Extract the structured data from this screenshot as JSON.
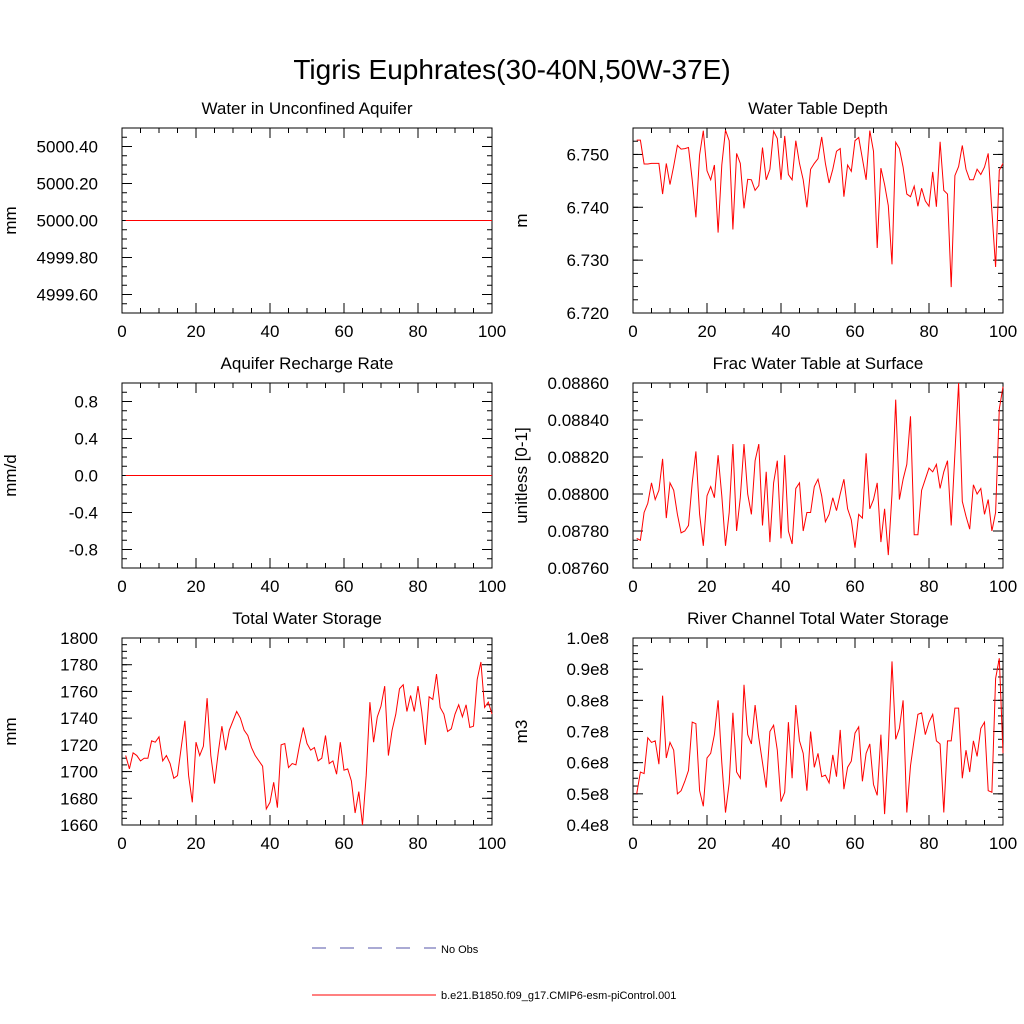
{
  "page_title": "Tigris Euphrates(30-40N,50W-37E)",
  "colors": {
    "series": "#ff0000",
    "no_obs": "#5555aa",
    "axis": "#000000"
  },
  "legend": {
    "items": [
      {
        "label": "No Obs",
        "style": "dashed",
        "color": "#5555aa"
      },
      {
        "label": "b.e21.B1850.f09_g17.CMIP6-esm-piControl.001",
        "style": "solid",
        "color": "#ff0000"
      }
    ]
  },
  "chart_data": [
    {
      "type": "line",
      "title": "Water in Unconfined Aquifer",
      "ylabel": "mm",
      "xlim": [
        0,
        100
      ],
      "ylim": [
        4999.5,
        5000.5
      ],
      "xticks": [
        0,
        20,
        40,
        60,
        80,
        100
      ],
      "xtick_labels": [
        "0",
        "20",
        "40",
        "60",
        "80",
        "100"
      ],
      "yticks": [
        4999.6,
        4999.8,
        5000.0,
        5000.2,
        5000.4
      ],
      "ytick_labels": [
        "4999.60",
        "4999.80",
        "5000.00",
        "5000.20",
        "5000.40"
      ],
      "series": [
        {
          "x": [
            1,
            100
          ],
          "values": [
            5000.0,
            5000.0
          ]
        }
      ]
    },
    {
      "type": "line",
      "title": "Water Table Depth",
      "ylabel": "m",
      "xlim": [
        0,
        100
      ],
      "ylim": [
        6.72,
        6.755
      ],
      "xticks": [
        0,
        20,
        40,
        60,
        80,
        100
      ],
      "xtick_labels": [
        "0",
        "20",
        "40",
        "60",
        "80",
        "100"
      ],
      "yticks": [
        6.72,
        6.73,
        6.74,
        6.75
      ],
      "ytick_labels": [
        "6.720",
        "6.730",
        "6.740",
        "6.750"
      ],
      "series": [
        {
          "x_start": 1,
          "values": [
            6.7527,
            6.7527,
            6.7482,
            6.7482,
            6.7483,
            6.7483,
            6.7483,
            6.7425,
            6.7483,
            6.7443,
            6.7478,
            6.7517,
            6.751,
            6.7511,
            6.7513,
            6.7452,
            6.7381,
            6.7499,
            6.7545,
            6.7469,
            6.7452,
            6.748,
            6.7352,
            6.748,
            6.7546,
            6.7526,
            6.7358,
            6.7502,
            6.7483,
            6.7398,
            6.7453,
            6.7452,
            6.7432,
            6.7441,
            6.7513,
            6.7452,
            6.7472,
            6.7544,
            6.753,
            6.7452,
            6.7535,
            6.7462,
            6.7452,
            6.7526,
            6.7483,
            6.7452,
            6.74,
            6.7472,
            6.7483,
            6.7492,
            6.7533,
            6.7483,
            6.7446,
            6.7472,
            6.7506,
            6.7511,
            6.742,
            6.748,
            6.7468,
            6.7526,
            6.7532,
            6.7492,
            6.7452,
            6.7545,
            6.7506,
            6.7323,
            6.7474,
            6.7443,
            6.7403,
            6.7292,
            6.7523,
            6.7511,
            6.7476,
            6.7425,
            6.742,
            6.744,
            6.7402,
            6.7436,
            6.7412,
            6.7402,
            6.7467,
            6.7401,
            6.7524,
            6.7432,
            6.7425,
            6.7249,
            6.746,
            6.7477,
            6.7517,
            6.7472,
            6.7452,
            6.7452,
            6.7472,
            6.7462,
            6.7476,
            6.7502,
            6.7392,
            6.7287,
            6.747,
            6.7483,
            6.7474,
            6.7268
          ]
        }
      ]
    },
    {
      "type": "line",
      "title": "Aquifer Recharge Rate",
      "ylabel": "mm/d",
      "xlim": [
        0,
        100
      ],
      "ylim": [
        -1,
        1
      ],
      "xticks": [
        0,
        20,
        40,
        60,
        80,
        100
      ],
      "xtick_labels": [
        "0",
        "20",
        "40",
        "60",
        "80",
        "100"
      ],
      "yticks": [
        -0.8,
        -0.4,
        0.0,
        0.4,
        0.8
      ],
      "ytick_labels": [
        "-0.8",
        "-0.4",
        "0.0",
        "0.4",
        "0.8"
      ],
      "series": [
        {
          "x": [
            1,
            100
          ],
          "values": [
            0.0,
            0.0
          ]
        }
      ]
    },
    {
      "type": "line",
      "title": "Frac Water Table at Surface",
      "ylabel": "unitless [0-1]",
      "xlim": [
        0,
        100
      ],
      "ylim": [
        0.0876,
        0.0886
      ],
      "xticks": [
        0,
        20,
        40,
        60,
        80,
        100
      ],
      "xtick_labels": [
        "0",
        "20",
        "40",
        "60",
        "80",
        "100"
      ],
      "yticks": [
        0.0876,
        0.0878,
        0.088,
        0.0882,
        0.0884,
        0.0886
      ],
      "ytick_labels": [
        "0.08760",
        "0.08780",
        "0.08800",
        "0.08820",
        "0.08840",
        "0.08860"
      ],
      "series": [
        {
          "x_start": 1,
          "values": [
            0.08776,
            0.08775,
            0.0879,
            0.08795,
            0.08806,
            0.08797,
            0.08802,
            0.08819,
            0.08787,
            0.08806,
            0.08802,
            0.08789,
            0.08779,
            0.0878,
            0.08783,
            0.08806,
            0.08823,
            0.08789,
            0.08772,
            0.08799,
            0.08804,
            0.08798,
            0.08821,
            0.08799,
            0.08772,
            0.0879,
            0.08827,
            0.0878,
            0.08798,
            0.08827,
            0.088,
            0.08789,
            0.08818,
            0.08827,
            0.08783,
            0.08812,
            0.08774,
            0.08806,
            0.08818,
            0.08776,
            0.08821,
            0.0878,
            0.08773,
            0.08803,
            0.08806,
            0.0878,
            0.0879,
            0.0879,
            0.08804,
            0.08808,
            0.08799,
            0.08785,
            0.08789,
            0.08798,
            0.08791,
            0.088,
            0.08808,
            0.08792,
            0.08786,
            0.08771,
            0.08789,
            0.08787,
            0.08822,
            0.08792,
            0.08797,
            0.08806,
            0.08774,
            0.08792,
            0.08767,
            0.088,
            0.08851,
            0.08797,
            0.08808,
            0.08816,
            0.08842,
            0.08778,
            0.08778,
            0.08802,
            0.08808,
            0.08814,
            0.08812,
            0.08816,
            0.08803,
            0.08812,
            0.08818,
            0.08783,
            0.08822,
            0.0886,
            0.08796,
            0.08788,
            0.08781,
            0.08805,
            0.088,
            0.08803,
            0.08789,
            0.08797,
            0.0878,
            0.0879,
            0.08846,
            0.08858,
            0.08794,
            0.08808
          ]
        }
      ]
    },
    {
      "type": "line",
      "title": "Total Water Storage",
      "ylabel": "mm",
      "xlim": [
        0,
        100
      ],
      "ylim": [
        1660,
        1800
      ],
      "xticks": [
        0,
        20,
        40,
        60,
        80,
        100
      ],
      "xtick_labels": [
        "0",
        "20",
        "40",
        "60",
        "80",
        "100"
      ],
      "yticks": [
        1660,
        1680,
        1700,
        1720,
        1740,
        1760,
        1780,
        1800
      ],
      "ytick_labels": [
        "1660",
        "1680",
        "1700",
        "1720",
        "1740",
        "1760",
        "1780",
        "1800"
      ],
      "series": [
        {
          "x_start": 1,
          "values": [
            1712,
            1702,
            1714,
            1712,
            1708,
            1710,
            1710,
            1723,
            1722,
            1726,
            1708,
            1712,
            1706,
            1695,
            1697,
            1718,
            1738,
            1697,
            1677,
            1722,
            1712,
            1719,
            1755,
            1712,
            1691,
            1714,
            1734,
            1716,
            1731,
            1738,
            1745,
            1740,
            1731,
            1727,
            1718,
            1712,
            1708,
            1704,
            1672,
            1677,
            1692,
            1673,
            1720,
            1721,
            1703,
            1706,
            1705,
            1720,
            1733,
            1721,
            1716,
            1718,
            1708,
            1710,
            1727,
            1706,
            1708,
            1698,
            1722,
            1701,
            1702,
            1693,
            1669,
            1685,
            1660,
            1697,
            1752,
            1722,
            1741,
            1749,
            1764,
            1712,
            1731,
            1743,
            1762,
            1765,
            1745,
            1757,
            1745,
            1764,
            1745,
            1720,
            1756,
            1754,
            1773,
            1748,
            1743,
            1730,
            1732,
            1743,
            1750,
            1741,
            1750,
            1733,
            1734,
            1769,
            1782,
            1748,
            1752,
            1743,
            1777
          ]
        }
      ]
    },
    {
      "type": "line",
      "title": "River Channel Total Water Storage",
      "ylabel": "m3",
      "xlim": [
        0,
        100
      ],
      "ylim": [
        40000000,
        100000000
      ],
      "xticks": [
        0,
        20,
        40,
        60,
        80,
        100
      ],
      "xtick_labels": [
        "0",
        "20",
        "40",
        "60",
        "80",
        "100"
      ],
      "yticks": [
        40000000,
        50000000,
        60000000,
        70000000,
        80000000,
        90000000,
        100000000
      ],
      "ytick_labels": [
        "0.4e8",
        "0.5e8",
        "0.6e8",
        "0.7e8",
        "0.8e8",
        "0.9e8",
        "1.0e8"
      ],
      "series": [
        {
          "x_start": 1,
          "values": [
            50000000,
            57000000,
            56500000,
            68000000,
            66500000,
            67000000,
            59500000,
            81500000,
            61500000,
            66500000,
            64000000,
            50000000,
            51000000,
            54000000,
            57500000,
            73000000,
            72500000,
            51000000,
            46000000,
            61500000,
            63000000,
            69000000,
            80000000,
            60000000,
            44000000,
            53500000,
            76000000,
            57000000,
            55000000,
            85000000,
            69000000,
            66000000,
            78500000,
            68000000,
            60000000,
            52000000,
            70000000,
            72000000,
            64000000,
            47500000,
            50500000,
            73000000,
            55000000,
            78500000,
            67000000,
            63000000,
            51000000,
            70000000,
            58500000,
            63000000,
            55500000,
            56000000,
            53500000,
            62500000,
            55500000,
            70500000,
            51500000,
            58500000,
            60500000,
            69500000,
            71500000,
            54000000,
            63000000,
            66000000,
            53000000,
            49500000,
            69000000,
            43500000,
            64500000,
            92500000,
            67500000,
            71000000,
            80000000,
            44000000,
            59000000,
            67500000,
            75500000,
            76000000,
            69000000,
            73000000,
            75500000,
            67000000,
            66000000,
            44000000,
            67000000,
            67000000,
            77500000,
            77500000,
            55000000,
            64000000,
            57000000,
            67000000,
            62000000,
            71000000,
            73000000,
            51000000,
            50500000,
            87000000,
            93500000,
            63000000,
            66000000,
            60000000,
            68000000
          ]
        }
      ]
    }
  ]
}
